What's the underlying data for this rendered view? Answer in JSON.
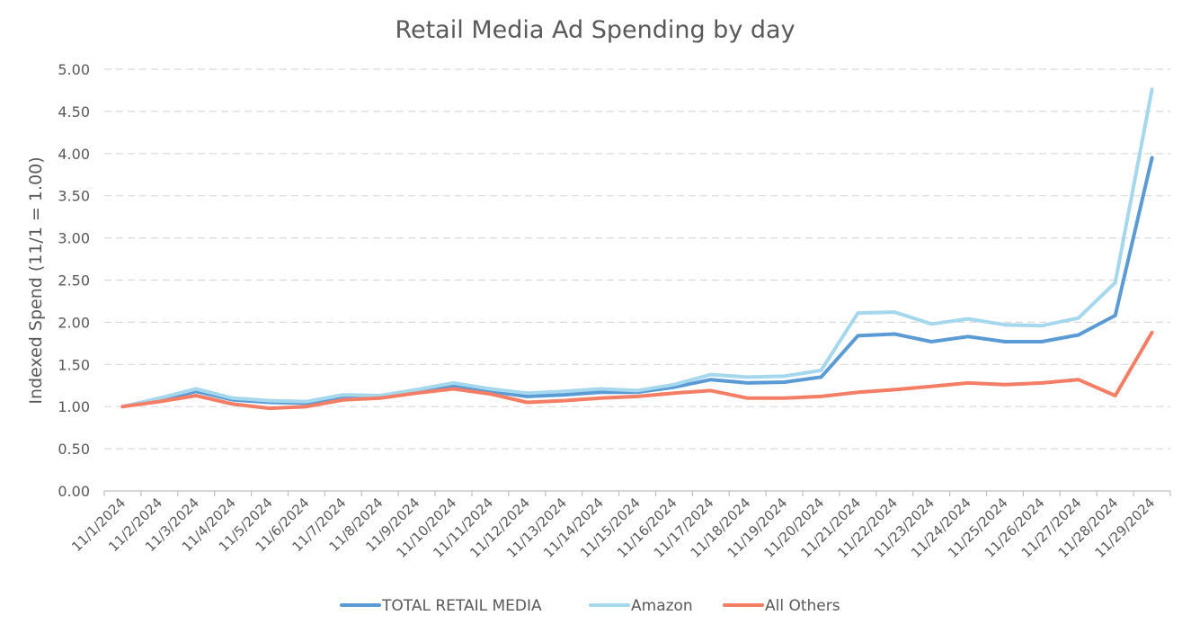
{
  "chart_data": {
    "type": "line",
    "title": "Retail Media Ad Spending by day",
    "ylabel": "Indexed Spend (11/1 = 1.00)",
    "xlabel": "",
    "ylim": [
      0,
      5
    ],
    "yticks": [
      "0.00",
      "0.50",
      "1.00",
      "1.50",
      "2.00",
      "2.50",
      "3.00",
      "3.50",
      "4.00",
      "4.50",
      "5.00"
    ],
    "categories": [
      "11/1/2024",
      "11/2/2024",
      "11/3/2024",
      "11/4/2024",
      "11/5/2024",
      "11/6/2024",
      "11/7/2024",
      "11/8/2024",
      "11/9/2024",
      "11/10/2024",
      "11/11/2024",
      "11/12/2024",
      "11/13/2024",
      "11/14/2024",
      "11/15/2024",
      "11/16/2024",
      "11/17/2024",
      "11/18/2024",
      "11/19/2024",
      "11/20/2024",
      "11/21/2024",
      "11/22/2024",
      "11/23/2024",
      "11/24/2024",
      "11/25/2024",
      "11/26/2024",
      "11/27/2024",
      "11/28/2024",
      "11/29/2024"
    ],
    "grid": true,
    "legend_position": "bottom",
    "series": [
      {
        "name": "TOTAL RETAIL MEDIA",
        "color": "#5b9bd5",
        "values": [
          1.0,
          1.08,
          1.18,
          1.08,
          1.05,
          1.04,
          1.11,
          1.12,
          1.18,
          1.25,
          1.18,
          1.12,
          1.14,
          1.17,
          1.17,
          1.23,
          1.32,
          1.28,
          1.29,
          1.35,
          1.84,
          1.86,
          1.77,
          1.83,
          1.77,
          1.77,
          1.85,
          2.08,
          3.95
        ]
      },
      {
        "name": "Amazon",
        "color": "#a5d8ec",
        "values": [
          1.0,
          1.1,
          1.21,
          1.1,
          1.07,
          1.06,
          1.14,
          1.13,
          1.2,
          1.28,
          1.21,
          1.16,
          1.18,
          1.21,
          1.19,
          1.26,
          1.38,
          1.35,
          1.36,
          1.43,
          2.11,
          2.12,
          1.98,
          2.04,
          1.97,
          1.96,
          2.05,
          2.47,
          4.76
        ]
      },
      {
        "name": "All Others",
        "color": "#f47e65",
        "values": [
          1.0,
          1.06,
          1.13,
          1.03,
          0.98,
          1.0,
          1.08,
          1.1,
          1.16,
          1.21,
          1.15,
          1.05,
          1.07,
          1.1,
          1.12,
          1.16,
          1.19,
          1.1,
          1.1,
          1.12,
          1.17,
          1.2,
          1.24,
          1.28,
          1.26,
          1.28,
          1.32,
          1.13,
          1.88
        ]
      }
    ]
  }
}
